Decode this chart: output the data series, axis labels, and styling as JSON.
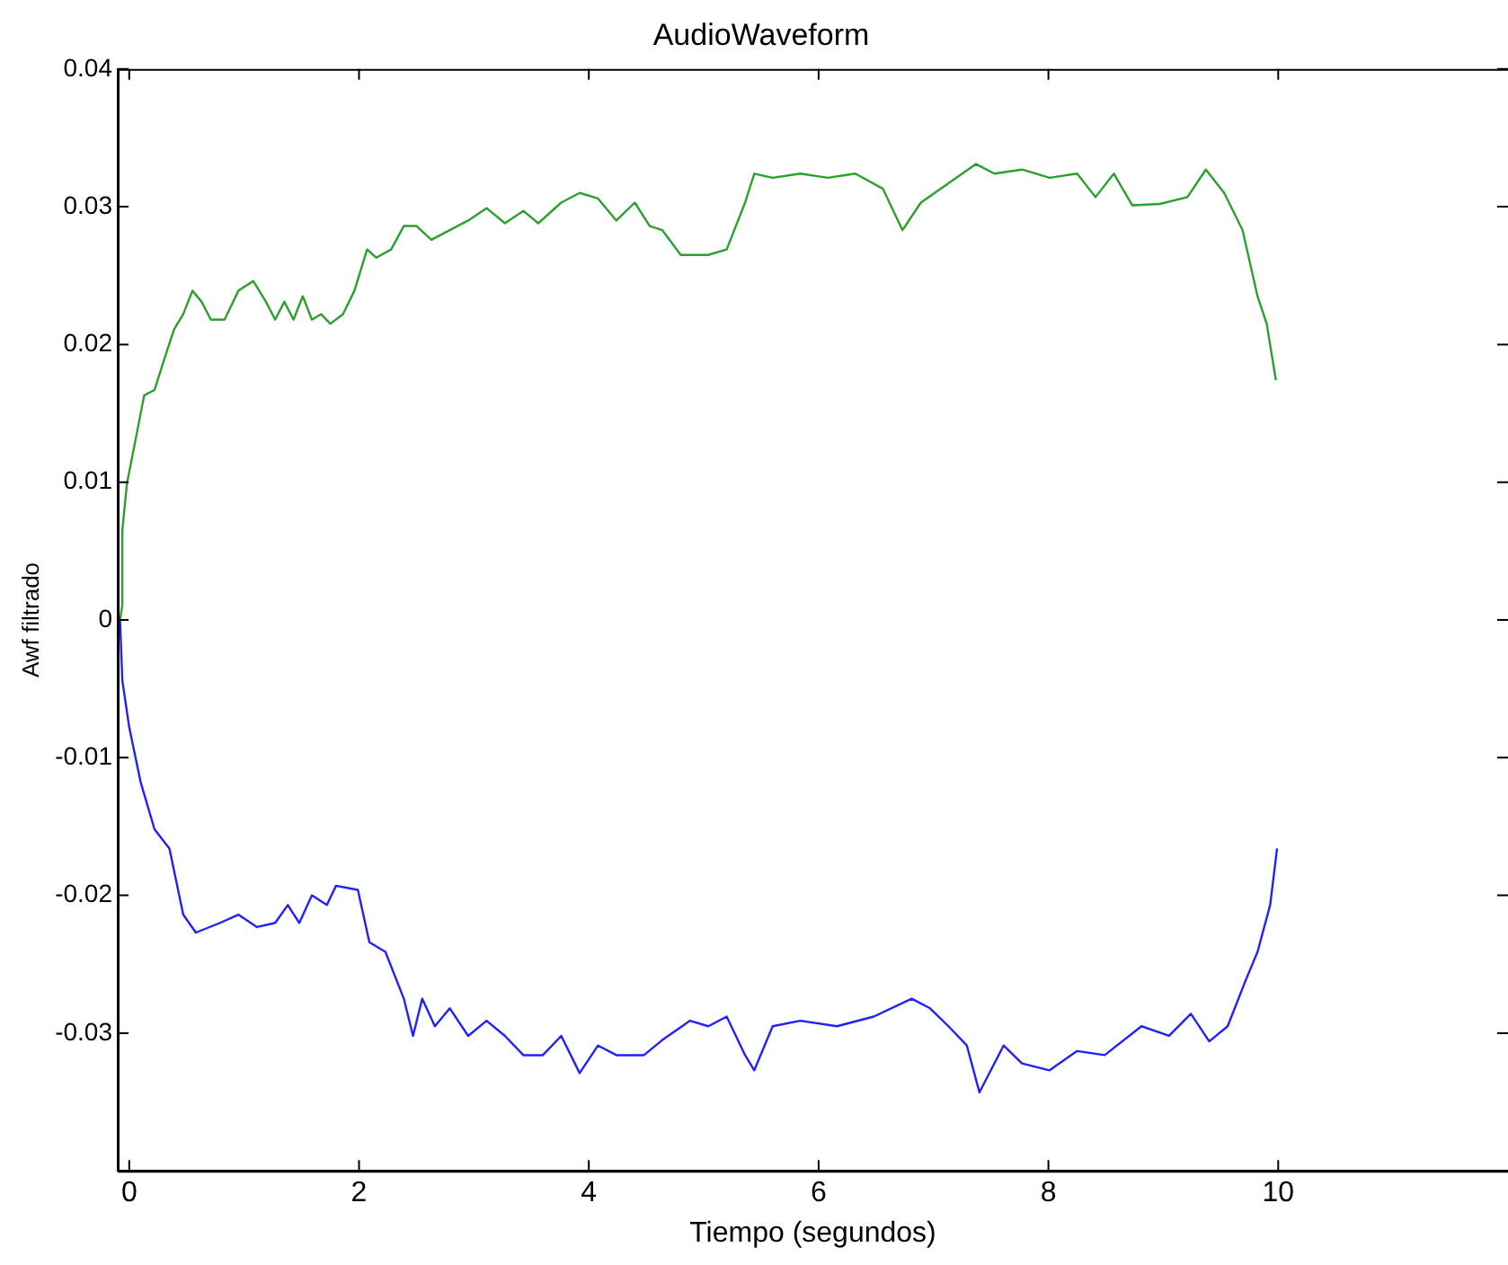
{
  "chart_data": {
    "type": "line",
    "title": "AudioWaveform",
    "xlabel": "Tiempo (segundos)",
    "ylabel": "Awf filtrado",
    "xlim": [
      -0.1,
      12
    ],
    "xticks": [
      0,
      2,
      4,
      6,
      8,
      10
    ],
    "ylim": [
      -0.04,
      0.04
    ],
    "yticks": [
      -0.03,
      -0.02,
      -0.01,
      0,
      0.01,
      0.02,
      0.03,
      0.04
    ],
    "grid": false,
    "legend": false,
    "marker": "none",
    "line_style": "solid",
    "series": [
      {
        "color": "#2ca02c",
        "x": [
          -0.08,
          -0.06,
          -0.06,
          -0.02,
          0.06,
          0.13,
          0.22,
          0.3,
          0.39,
          0.47,
          0.55,
          0.63,
          0.71,
          0.83,
          0.95,
          1.08,
          1.19,
          1.27,
          1.35,
          1.43,
          1.51,
          1.59,
          1.67,
          1.75,
          1.86,
          1.96,
          2.07,
          2.15,
          2.28,
          2.39,
          2.5,
          2.63,
          2.79,
          2.95,
          3.11,
          3.27,
          3.43,
          3.56,
          3.76,
          3.92,
          4.08,
          4.24,
          4.4,
          4.53,
          4.64,
          4.8,
          5.04,
          5.2,
          5.36,
          5.44,
          5.6,
          5.84,
          6.08,
          6.32,
          6.56,
          6.73,
          6.89,
          7.13,
          7.37,
          7.53,
          7.77,
          8.01,
          8.25,
          8.41,
          8.57,
          8.73,
          8.97,
          9.21,
          9.37,
          9.53,
          9.69,
          9.82,
          9.9,
          9.98
        ],
        "values": [
          0,
          0.0011,
          0.0065,
          0.0099,
          0.0133,
          0.0163,
          0.0167,
          0.0188,
          0.0211,
          0.0222,
          0.0239,
          0.0231,
          0.0218,
          0.0218,
          0.0239,
          0.0246,
          0.0231,
          0.0218,
          0.0231,
          0.0218,
          0.0235,
          0.0218,
          0.0222,
          0.0215,
          0.0222,
          0.0239,
          0.0269,
          0.0263,
          0.0269,
          0.0286,
          0.0286,
          0.0276,
          0.0283,
          0.029,
          0.0299,
          0.0288,
          0.0297,
          0.0288,
          0.0303,
          0.031,
          0.0306,
          0.029,
          0.0303,
          0.0286,
          0.0283,
          0.0265,
          0.0265,
          0.0269,
          0.0303,
          0.0324,
          0.0321,
          0.0324,
          0.0321,
          0.0324,
          0.0313,
          0.0283,
          0.0303,
          0.0317,
          0.0331,
          0.0324,
          0.0327,
          0.0321,
          0.0324,
          0.0307,
          0.0324,
          0.0301,
          0.0302,
          0.0307,
          0.0327,
          0.031,
          0.0283,
          0.0235,
          0.0215,
          0.0174
        ]
      },
      {
        "color": "#2020ff",
        "x": [
          -0.08,
          -0.06,
          0,
          0.1,
          0.22,
          0.35,
          0.47,
          0.58,
          0.79,
          0.95,
          1.11,
          1.27,
          1.38,
          1.48,
          1.59,
          1.72,
          1.8,
          1.99,
          2.09,
          2.23,
          2.39,
          2.47,
          2.55,
          2.66,
          2.79,
          2.95,
          3.11,
          3.27,
          3.43,
          3.6,
          3.76,
          3.92,
          4.08,
          4.24,
          4.48,
          4.64,
          4.88,
          5.04,
          5.2,
          5.36,
          5.44,
          5.6,
          5.84,
          6.16,
          6.48,
          6.81,
          6.97,
          7.13,
          7.29,
          7.4,
          7.61,
          7.77,
          8.01,
          8.25,
          8.49,
          8.81,
          9.05,
          9.24,
          9.4,
          9.56,
          9.72,
          9.82,
          9.93,
          9.99
        ],
        "values": [
          0,
          -0.0044,
          -0.0078,
          -0.0118,
          -0.0152,
          -0.0166,
          -0.0214,
          -0.0227,
          -0.022,
          -0.0214,
          -0.0223,
          -0.022,
          -0.0207,
          -0.022,
          -0.02,
          -0.0207,
          -0.0193,
          -0.0196,
          -0.0234,
          -0.0241,
          -0.0275,
          -0.0302,
          -0.0275,
          -0.0295,
          -0.0282,
          -0.0302,
          -0.0291,
          -0.0302,
          -0.0316,
          -0.0316,
          -0.0302,
          -0.0329,
          -0.0309,
          -0.0316,
          -0.0316,
          -0.0305,
          -0.0291,
          -0.0295,
          -0.0288,
          -0.0316,
          -0.0327,
          -0.0295,
          -0.0291,
          -0.0295,
          -0.0288,
          -0.0275,
          -0.0282,
          -0.0295,
          -0.0309,
          -0.0343,
          -0.0309,
          -0.0322,
          -0.0327,
          -0.0313,
          -0.0316,
          -0.0295,
          -0.0302,
          -0.0286,
          -0.0306,
          -0.0295,
          -0.0261,
          -0.0241,
          -0.0207,
          -0.0166
        ]
      }
    ]
  }
}
